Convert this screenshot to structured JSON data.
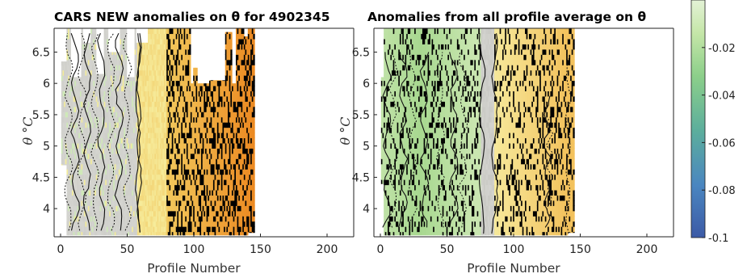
{
  "chart_data": [
    {
      "type": "heatmap",
      "title": "CARS NEW anomalies on θ for 4902345",
      "xlabel": "Profile Number",
      "ylabel": "θ °C",
      "xlim": [
        0,
        220
      ],
      "ylim": [
        3.55,
        6.88
      ],
      "xticks": [
        "0",
        "50",
        "100",
        "150",
        "200"
      ],
      "yticks": [
        "6.5",
        "6",
        "5.5",
        "5",
        "4.5",
        "4"
      ],
      "grid": false,
      "contours": true,
      "profile_range": [
        1,
        145
      ],
      "anomaly_sign_by_profile": [
        {
          "profiles": [
            1,
            58
          ],
          "value": "near zero (grey) with small negative pockets"
        },
        {
          "profiles": [
            58,
            80
          ],
          "value": "small positive (light yellow)"
        },
        {
          "profiles": [
            80,
            145
          ],
          "value": "positive, increasing to orange"
        }
      ]
    },
    {
      "type": "heatmap",
      "title": "Anomalies from all profile average on θ",
      "xlabel": "Profile Number",
      "ylabel": "θ °C",
      "xlim": [
        0,
        220
      ],
      "ylim": [
        3.55,
        6.88
      ],
      "xticks": [
        "0",
        "50",
        "100",
        "150",
        "200"
      ],
      "yticks": [
        "6.5",
        "6",
        "5.5",
        "5",
        "4.5",
        "4"
      ],
      "grid": false,
      "contours": true,
      "profile_range": [
        1,
        145
      ],
      "anomaly_sign_by_profile": [
        {
          "profiles": [
            1,
            75
          ],
          "value": "negative (light green)"
        },
        {
          "profiles": [
            75,
            85
          ],
          "value": "near zero (grey)"
        },
        {
          "profiles": [
            85,
            145
          ],
          "value": "positive (yellow to light orange)"
        }
      ]
    }
  ],
  "colorbar": {
    "ticks": [
      "-0.02",
      "-0.04",
      "-0.06",
      "-0.08",
      "-0.1"
    ],
    "tick_values": [
      -0.02,
      -0.04,
      -0.06,
      -0.08,
      -0.1
    ],
    "range": [
      -0.1,
      0.0
    ],
    "colors": [
      "#3c5aa6",
      "#4a86c0",
      "#5cae9c",
      "#8ccf8a",
      "#c5e6a8",
      "#e3f2d6"
    ]
  }
}
